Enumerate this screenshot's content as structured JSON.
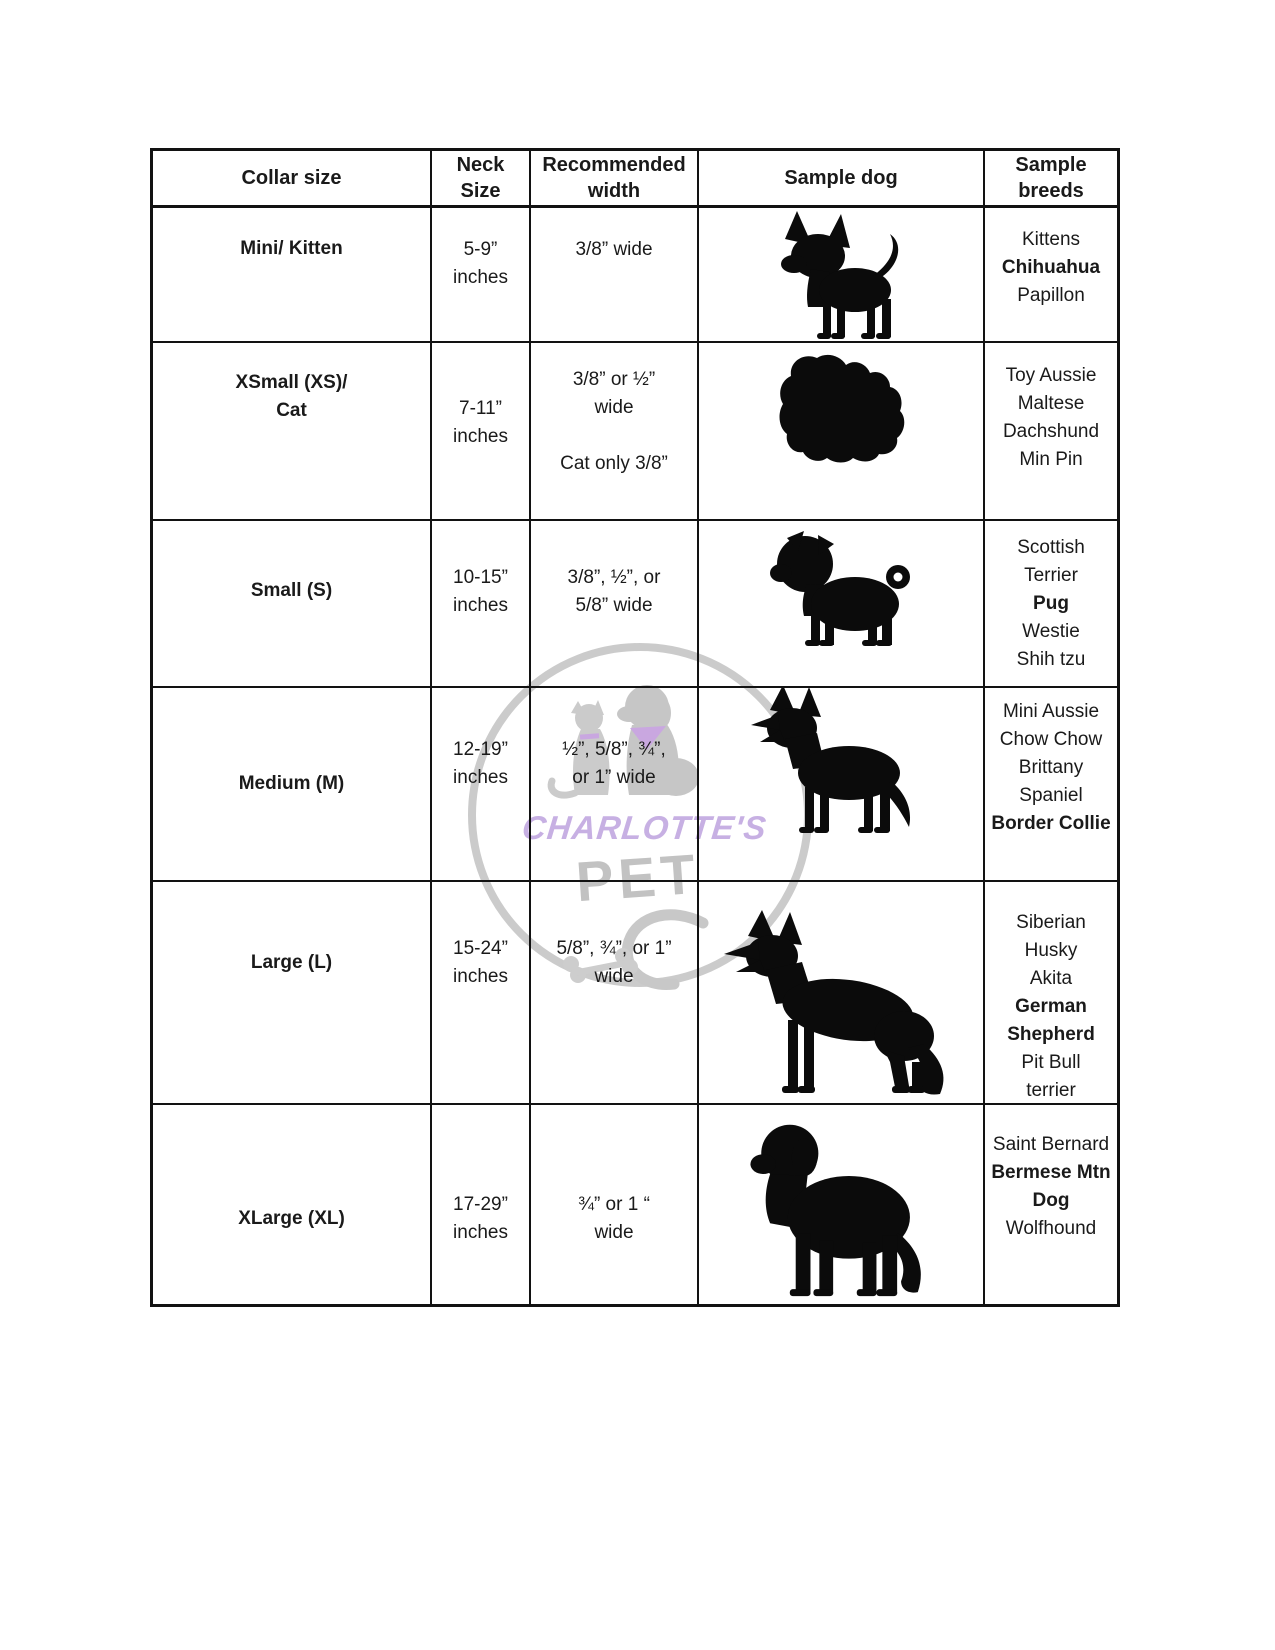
{
  "colors": {
    "text": "#1a1a1a",
    "table_border": "#121212",
    "silhouette_black": "#0b0b0b",
    "watermark_gray": "#c6c6c6",
    "watermark_purple": "#c7b0e3"
  },
  "watermark": {
    "brand": "CHARLOTTE'S",
    "pet": "PET",
    "icons": [
      "circle-badge",
      "dog-silhouette",
      "cat-silhouette",
      "c-swoosh",
      "bone-icon"
    ]
  },
  "table": {
    "headers": [
      {
        "lines": [
          "Collar size"
        ]
      },
      {
        "lines": [
          "Neck",
          "Size"
        ]
      },
      {
        "lines": [
          "Recommended",
          "width"
        ]
      },
      {
        "lines": [
          "Sample dog"
        ]
      },
      {
        "lines": [
          "Sample",
          "breeds"
        ]
      }
    ],
    "rows": [
      {
        "collar_size": {
          "lines": [
            "Mini/ Kitten"
          ]
        },
        "neck_size": {
          "lines": [
            "5-9”",
            "inches"
          ]
        },
        "width": {
          "lines": [
            "3/8” wide"
          ]
        },
        "dog": {
          "icon": "chihuahua-silhouette"
        },
        "breeds": [
          {
            "text": "Kittens",
            "bold": false
          },
          {
            "text": "Chihuahua",
            "bold": true
          },
          {
            "text": "Papillon",
            "bold": false
          }
        ]
      },
      {
        "collar_size": {
          "lines": [
            "XSmall (XS)/",
            "Cat"
          ]
        },
        "neck_size": {
          "lines": [
            "7-11”",
            "inches"
          ]
        },
        "width": {
          "lines": [
            "3/8” or ½”",
            "wide",
            "",
            "Cat only 3/8”"
          ]
        },
        "dog": {
          "icon": "maltese-silhouette"
        },
        "breeds": [
          {
            "text": "Toy Aussie",
            "bold": false
          },
          {
            "text": "Maltese",
            "bold": false
          },
          {
            "text": "Dachshund",
            "bold": false
          },
          {
            "text": "Min Pin",
            "bold": false
          }
        ]
      },
      {
        "collar_size": {
          "lines": [
            "Small (S)"
          ]
        },
        "neck_size": {
          "lines": [
            "10-15”",
            "inches"
          ]
        },
        "width": {
          "lines": [
            "3/8”, ½”, or",
            "5/8” wide"
          ]
        },
        "dog": {
          "icon": "pug-silhouette"
        },
        "breeds": [
          {
            "text": "Scottish",
            "bold": false
          },
          {
            "text": "Terrier",
            "bold": false
          },
          {
            "text": "Pug",
            "bold": true
          },
          {
            "text": "Westie",
            "bold": false
          },
          {
            "text": "Shih tzu",
            "bold": false
          }
        ]
      },
      {
        "collar_size": {
          "lines": [
            "Medium (M)"
          ]
        },
        "neck_size": {
          "lines": [
            "12-19”",
            "inches"
          ]
        },
        "width": {
          "lines": [
            "½”, 5/8”, ¾”,",
            "or 1” wide"
          ]
        },
        "dog": {
          "icon": "shepherd-silhouette"
        },
        "breeds": [
          {
            "text": "Mini Aussie",
            "bold": false
          },
          {
            "text": "Chow Chow",
            "bold": false
          },
          {
            "text": "Brittany",
            "bold": false
          },
          {
            "text": "Spaniel",
            "bold": false
          },
          {
            "text": "Border Collie",
            "bold": true
          }
        ]
      },
      {
        "collar_size": {
          "lines": [
            "Large (L)"
          ]
        },
        "neck_size": {
          "lines": [
            "15-24”",
            "inches"
          ]
        },
        "width": {
          "lines": [
            "5/8”, ¾”, or 1”",
            "wide"
          ]
        },
        "dog": {
          "icon": "german-shepherd-silhouette"
        },
        "breeds": [
          {
            "text": "Siberian",
            "bold": false
          },
          {
            "text": "Husky",
            "bold": false
          },
          {
            "text": "Akita",
            "bold": false
          },
          {
            "text": "German",
            "bold": true
          },
          {
            "text": "Shepherd",
            "bold": true
          },
          {
            "text": "Pit Bull",
            "bold": false
          },
          {
            "text": "terrier",
            "bold": false
          }
        ]
      },
      {
        "collar_size": {
          "lines": [
            "XLarge (XL)"
          ]
        },
        "neck_size": {
          "lines": [
            "17-29”",
            "inches"
          ]
        },
        "width": {
          "lines": [
            "¾” or 1 “",
            "wide"
          ]
        },
        "dog": {
          "icon": "bernese-silhouette"
        },
        "breeds": [
          {
            "text": "Saint Bernard",
            "bold": false
          },
          {
            "text": "Bermese Mtn",
            "bold": true
          },
          {
            "text": "Dog",
            "bold": true
          },
          {
            "text": "Wolfhound",
            "bold": false
          }
        ]
      }
    ]
  }
}
